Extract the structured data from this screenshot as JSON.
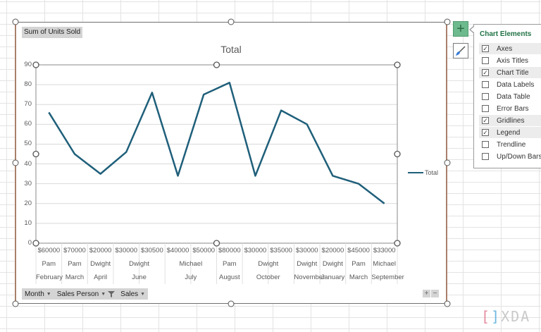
{
  "chart_field_button": "Sum of Units Sold",
  "chart_data": {
    "type": "line",
    "title": "Total",
    "xlabel": "",
    "ylabel": "",
    "ylim": [
      0,
      90
    ],
    "yticks": [
      0,
      10,
      20,
      30,
      40,
      50,
      60,
      70,
      80,
      90
    ],
    "grid": true,
    "legend_position": "right",
    "categories": [
      {
        "sales": "$60000",
        "person": "Pam",
        "month": "February"
      },
      {
        "sales": "$70000",
        "person": "Pam",
        "month": "March"
      },
      {
        "sales": "$20000",
        "person": "Dwight",
        "month": "April"
      },
      {
        "sales": "$30000",
        "person": "Dwight",
        "month": "June"
      },
      {
        "sales": "$30500",
        "person": "Dwight",
        "month": "June"
      },
      {
        "sales": "$40000",
        "person": "Michael",
        "month": "July"
      },
      {
        "sales": "$50000",
        "person": "Michael",
        "month": "July"
      },
      {
        "sales": "$80000",
        "person": "Pam",
        "month": "August"
      },
      {
        "sales": "$30000",
        "person": "Dwight",
        "month": "October"
      },
      {
        "sales": "$35000",
        "person": "Dwight",
        "month": "October"
      },
      {
        "sales": "$30000",
        "person": "Dwight",
        "month": "November"
      },
      {
        "sales": "$20000",
        "person": "Dwight",
        "month": "January"
      },
      {
        "sales": "$45000",
        "person": "Pam",
        "month": "March"
      },
      {
        "sales": "$33000",
        "person": "Michael",
        "month": "September"
      }
    ],
    "series": [
      {
        "name": "Total",
        "color": "#1f5f7a",
        "values": [
          66,
          45,
          35,
          46,
          76,
          34,
          75,
          81,
          34,
          67,
          60,
          34,
          30,
          20
        ]
      }
    ],
    "person_groups": [
      {
        "label": "Pam",
        "span": 1
      },
      {
        "label": "Pam",
        "span": 1
      },
      {
        "label": "Dwight",
        "span": 1
      },
      {
        "label": "Dwight",
        "span": 2
      },
      {
        "label": "Michael",
        "span": 2
      },
      {
        "label": "Pam",
        "span": 1
      },
      {
        "label": "Dwight",
        "span": 2
      },
      {
        "label": "Dwight",
        "span": 1
      },
      {
        "label": "Dwight",
        "span": 1
      },
      {
        "label": "Pam",
        "span": 1
      },
      {
        "label": "Michael",
        "span": 1
      }
    ],
    "month_groups": [
      {
        "label": "February",
        "span": 1
      },
      {
        "label": "March",
        "span": 1
      },
      {
        "label": "April",
        "span": 1
      },
      {
        "label": "June",
        "span": 2
      },
      {
        "label": "July",
        "span": 2
      },
      {
        "label": "August",
        "span": 1
      },
      {
        "label": "October",
        "span": 2
      },
      {
        "label": "November",
        "span": 1
      },
      {
        "label": "January",
        "span": 1
      },
      {
        "label": "March",
        "span": 1
      },
      {
        "label": "September",
        "span": 1
      }
    ]
  },
  "legend": {
    "label": "Total"
  },
  "field_buttons": {
    "month": "Month",
    "sales_person": "Sales Person",
    "sales": "Sales"
  },
  "zoom_controls": {
    "plus": "+",
    "minus": "−"
  },
  "side_buttons": {
    "add_element": "+",
    "styles": "brush"
  },
  "chart_elements_panel": {
    "title": "Chart Elements",
    "items": [
      {
        "label": "Axes",
        "checked": true
      },
      {
        "label": "Axis Titles",
        "checked": false
      },
      {
        "label": "Chart Title",
        "checked": true
      },
      {
        "label": "Data Labels",
        "checked": false
      },
      {
        "label": "Data Table",
        "checked": false
      },
      {
        "label": "Error Bars",
        "checked": false
      },
      {
        "label": "Gridlines",
        "checked": true
      },
      {
        "label": "Legend",
        "checked": true
      },
      {
        "label": "Trendline",
        "checked": false
      },
      {
        "label": "Up/Down Bars",
        "checked": false
      }
    ]
  },
  "watermark": "XDA"
}
